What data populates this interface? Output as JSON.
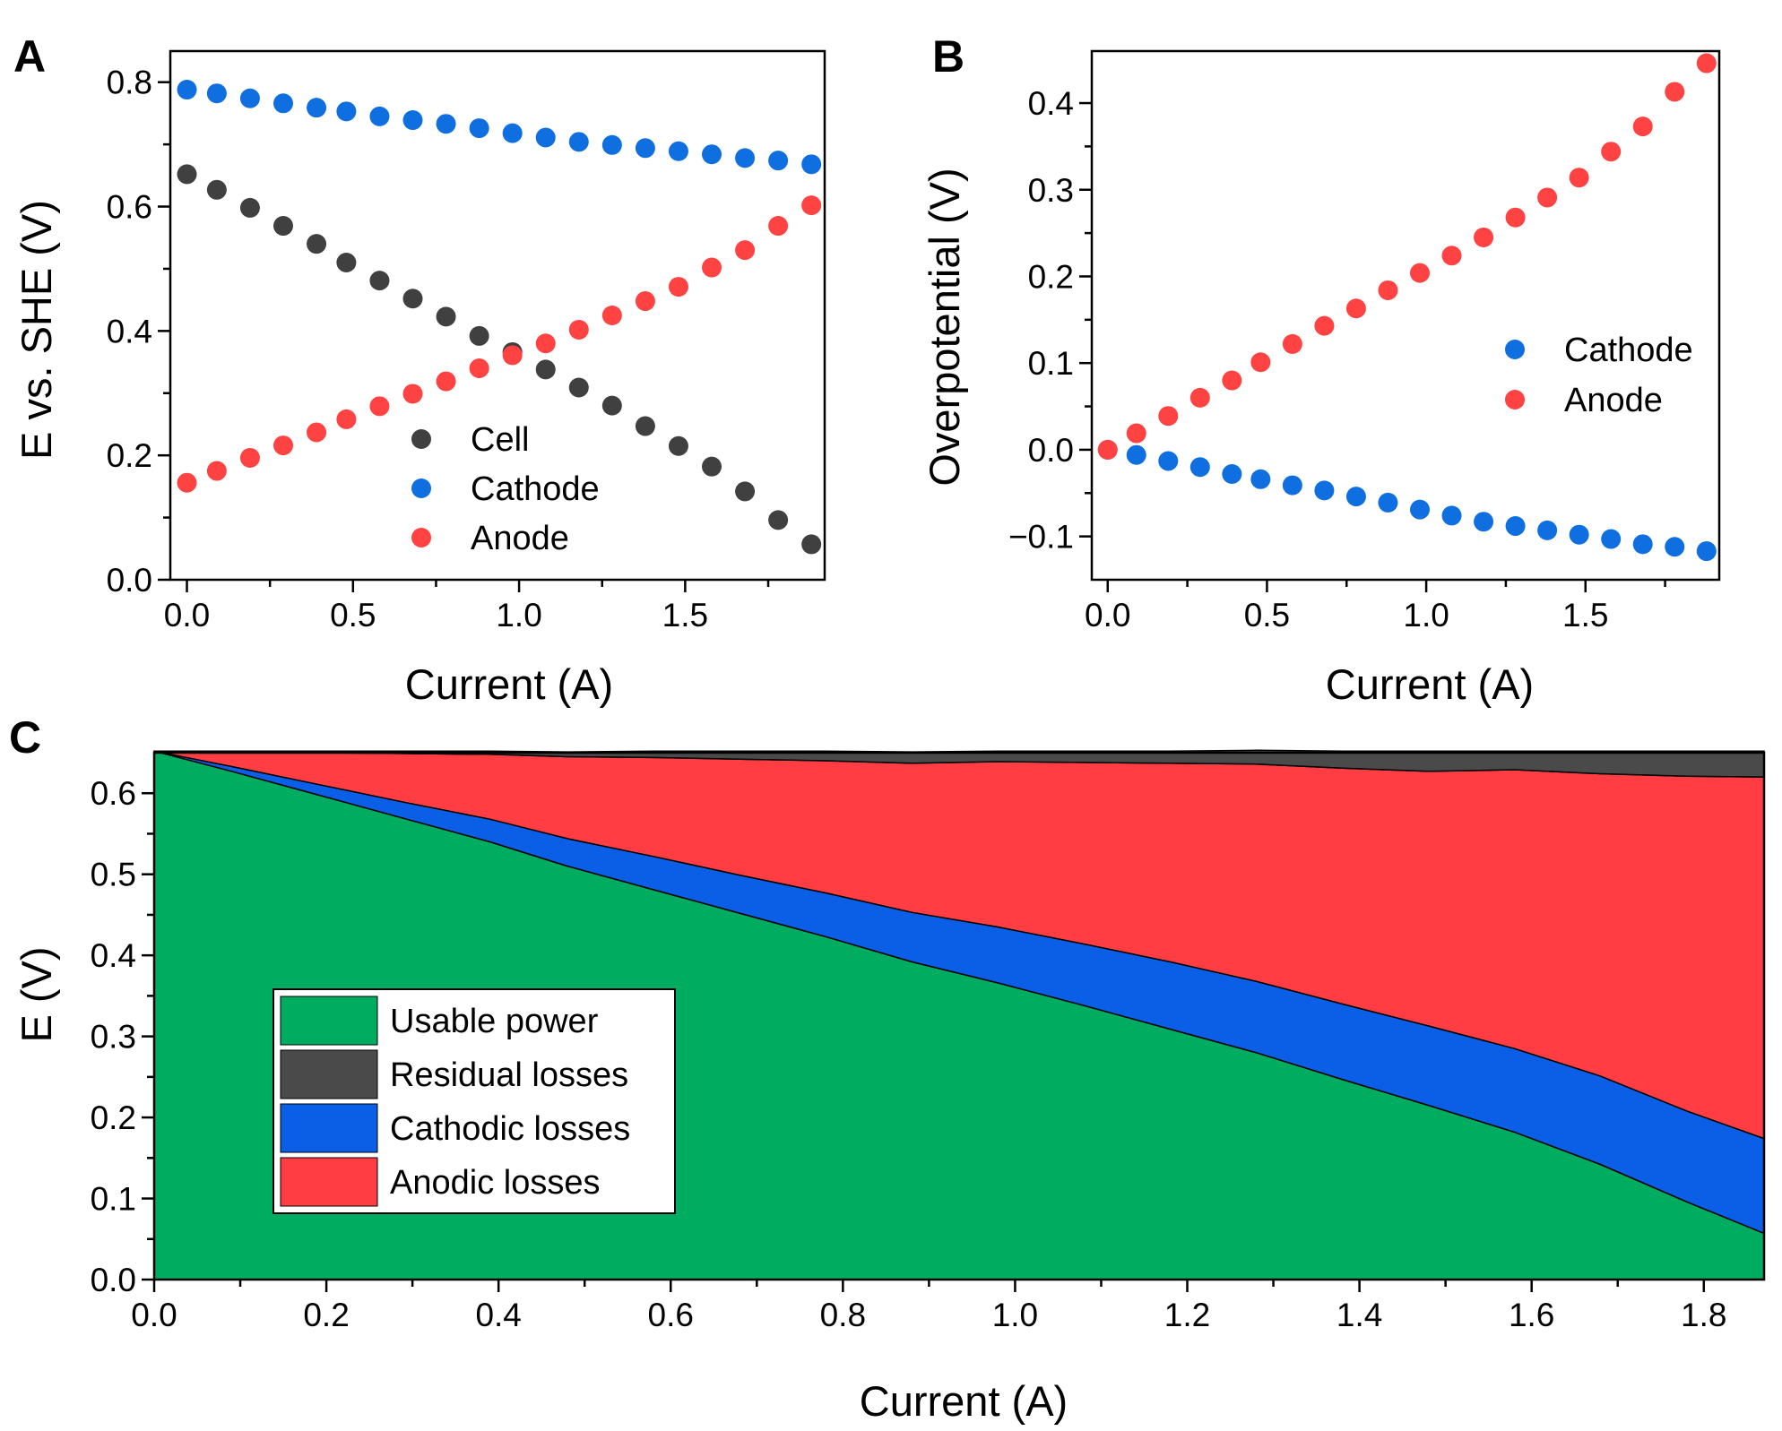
{
  "colors": {
    "cell": "#404040",
    "cathode": "#0f6fe0",
    "anode": "#ff4242",
    "usable": "#00ad60",
    "residual": "#4a4a4a",
    "cathodic": "#0b5fe6",
    "anodic": "#ff3d42"
  },
  "chart_data": [
    {
      "panel": "A",
      "type": "scatter",
      "xlabel": "Current (A)",
      "ylabel": "E vs. SHE (V)",
      "xlim": [
        -0.05,
        1.92
      ],
      "ylim": [
        0.0,
        0.85
      ],
      "xticks": [
        "0.0",
        "0.5",
        "1.0",
        "1.5"
      ],
      "yticks": [
        "0.0",
        "0.2",
        "0.4",
        "0.6",
        "0.8"
      ],
      "legend_position": "bottom-right",
      "x": [
        0.0,
        0.09,
        0.19,
        0.29,
        0.39,
        0.48,
        0.58,
        0.68,
        0.78,
        0.88,
        0.98,
        1.08,
        1.18,
        1.28,
        1.38,
        1.48,
        1.58,
        1.68,
        1.78,
        1.88
      ],
      "series": [
        {
          "name": "Cell",
          "color_key": "cell",
          "values": [
            0.652,
            0.627,
            0.598,
            0.569,
            0.54,
            0.51,
            0.481,
            0.452,
            0.423,
            0.392,
            0.366,
            0.338,
            0.309,
            0.28,
            0.247,
            0.215,
            0.182,
            0.142,
            0.096,
            0.057
          ]
        },
        {
          "name": "Cathode",
          "color_key": "cathode",
          "values": [
            0.788,
            0.782,
            0.774,
            0.766,
            0.759,
            0.753,
            0.745,
            0.739,
            0.733,
            0.726,
            0.718,
            0.711,
            0.704,
            0.699,
            0.694,
            0.689,
            0.684,
            0.678,
            0.674,
            0.668
          ]
        },
        {
          "name": "Anode",
          "color_key": "anode",
          "values": [
            0.156,
            0.175,
            0.196,
            0.216,
            0.237,
            0.258,
            0.279,
            0.299,
            0.319,
            0.34,
            0.361,
            0.38,
            0.402,
            0.425,
            0.448,
            0.471,
            0.502,
            0.53,
            0.569,
            0.602
          ]
        }
      ]
    },
    {
      "panel": "B",
      "type": "scatter",
      "xlabel": "Current (A)",
      "ylabel": "Overpotential (V)",
      "xlim": [
        -0.05,
        1.92
      ],
      "ylim": [
        -0.15,
        0.46
      ],
      "xticks": [
        "0.0",
        "0.5",
        "1.0",
        "1.5"
      ],
      "yticks": [
        "−0.1",
        "0.0",
        "0.1",
        "0.2",
        "0.3",
        "0.4"
      ],
      "legend_position": "center-right",
      "x": [
        0.0,
        0.09,
        0.19,
        0.29,
        0.39,
        0.48,
        0.58,
        0.68,
        0.78,
        0.88,
        0.98,
        1.08,
        1.18,
        1.28,
        1.38,
        1.48,
        1.58,
        1.68,
        1.78,
        1.88
      ],
      "series": [
        {
          "name": "Cathode",
          "color_key": "cathode",
          "values": [
            0.0,
            -0.006,
            -0.013,
            -0.02,
            -0.028,
            -0.034,
            -0.041,
            -0.047,
            -0.054,
            -0.061,
            -0.069,
            -0.076,
            -0.083,
            -0.088,
            -0.093,
            -0.098,
            -0.103,
            -0.109,
            -0.112,
            -0.117
          ]
        },
        {
          "name": "Anode",
          "color_key": "anode",
          "values": [
            0.0,
            0.019,
            0.039,
            0.06,
            0.08,
            0.101,
            0.122,
            0.143,
            0.163,
            0.184,
            0.204,
            0.224,
            0.245,
            0.268,
            0.291,
            0.314,
            0.344,
            0.373,
            0.413,
            0.446
          ]
        }
      ]
    },
    {
      "panel": "C",
      "type": "area",
      "stacked": true,
      "xlabel": "Current (A)",
      "ylabel": "E (V)",
      "xlim": [
        0.0,
        1.87
      ],
      "ylim": [
        0.0,
        0.65
      ],
      "xticks": [
        "0.0",
        "0.2",
        "0.4",
        "0.6",
        "0.8",
        "1.0",
        "1.2",
        "1.4",
        "1.6",
        "1.8"
      ],
      "yticks": [
        "0.0",
        "0.1",
        "0.2",
        "0.3",
        "0.4",
        "0.5",
        "0.6"
      ],
      "legend_position": "center-left",
      "x": [
        0.0,
        0.09,
        0.19,
        0.29,
        0.39,
        0.48,
        0.58,
        0.68,
        0.78,
        0.88,
        0.98,
        1.08,
        1.18,
        1.28,
        1.38,
        1.48,
        1.58,
        1.68,
        1.78,
        1.87
      ],
      "series": [
        {
          "name": "Usable power",
          "color_key": "usable",
          "values": [
            0.652,
            0.627,
            0.598,
            0.569,
            0.54,
            0.51,
            0.481,
            0.452,
            0.423,
            0.392,
            0.366,
            0.338,
            0.309,
            0.28,
            0.247,
            0.215,
            0.182,
            0.142,
            0.096,
            0.057
          ]
        },
        {
          "name": "Cathodic losses",
          "color_key": "cathodic",
          "values": [
            0.0,
            0.006,
            0.013,
            0.02,
            0.028,
            0.034,
            0.041,
            0.047,
            0.054,
            0.061,
            0.069,
            0.076,
            0.083,
            0.088,
            0.093,
            0.098,
            0.103,
            0.109,
            0.112,
            0.117
          ]
        },
        {
          "name": "Anodic losses",
          "color_key": "anodic",
          "values": [
            0.0,
            0.019,
            0.039,
            0.06,
            0.08,
            0.101,
            0.122,
            0.143,
            0.163,
            0.184,
            0.204,
            0.224,
            0.245,
            0.268,
            0.291,
            0.314,
            0.344,
            0.373,
            0.413,
            0.446
          ]
        },
        {
          "name": "Residual losses",
          "color_key": "residual",
          "values": [
            0.0,
            0.0,
            0.002,
            0.003,
            0.004,
            0.006,
            0.008,
            0.01,
            0.012,
            0.014,
            0.013,
            0.014,
            0.015,
            0.017,
            0.021,
            0.025,
            0.023,
            0.028,
            0.031,
            0.032
          ]
        }
      ],
      "legend": [
        "Usable power",
        "Residual losses",
        "Cathodic losses",
        "Anodic losses"
      ]
    }
  ]
}
